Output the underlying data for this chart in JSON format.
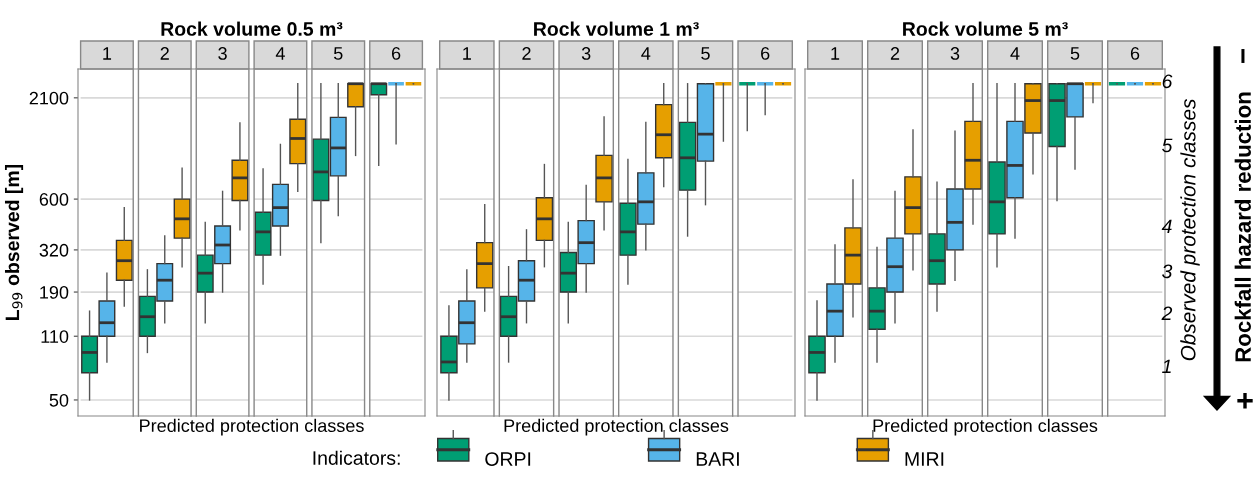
{
  "chart_data": [
    {
      "type": "box",
      "title": "Rock volume 0.5 m³",
      "xlabel": "Predicted protection classes",
      "ylabel": "L$_{99}$ observed [m]",
      "categories": [
        "1",
        "2",
        "3",
        "4",
        "5",
        "6"
      ],
      "log": true,
      "ylim": [
        41,
        3000
      ],
      "yticks": [
        50,
        110,
        190,
        320,
        600,
        2100
      ],
      "grid": "y",
      "series": [
        {
          "color": "#009e73",
          "boxes": [
            {
              "low": 50,
              "q1": 70,
              "median": 90,
              "q3": 110,
              "high": 150
            },
            {
              "low": 90,
              "q1": 110,
              "median": 140,
              "q3": 180,
              "high": 250
            },
            {
              "low": 130,
              "q1": 190,
              "median": 240,
              "q3": 300,
              "high": 450
            },
            {
              "low": 210,
              "q1": 300,
              "median": 400,
              "q3": 510,
              "high": 870
            },
            {
              "low": 350,
              "q1": 590,
              "median": 840,
              "q3": 1260,
              "high": 2500
            },
            {
              "low": 910,
              "q1": 2180,
              "median": 2500,
              "q3": 2500,
              "high": 2500
            }
          ]
        },
        {
          "color": "#56b4e9",
          "boxes": [
            {
              "low": 80,
              "q1": 110,
              "median": 130,
              "q3": 170,
              "high": 240
            },
            {
              "low": 130,
              "q1": 170,
              "median": 220,
              "q3": 270,
              "high": 380
            },
            {
              "low": 190,
              "q1": 270,
              "median": 340,
              "q3": 430,
              "high": 660
            },
            {
              "low": 300,
              "q1": 430,
              "median": 540,
              "q3": 720,
              "high": 1180
            },
            {
              "low": 490,
              "q1": 800,
              "median": 1130,
              "q3": 1650,
              "high": 2500
            },
            {
              "low": 1190,
              "q1": 2500,
              "median": 2500,
              "q3": 2500,
              "high": 2500
            }
          ]
        },
        {
          "color": "#e69f00",
          "boxes": [
            {
              "low": 160,
              "q1": 220,
              "median": 280,
              "q3": 360,
              "high": 540
            },
            {
              "low": 260,
              "q1": 370,
              "median": 470,
              "q3": 600,
              "high": 880
            },
            {
              "low": 410,
              "q1": 590,
              "median": 780,
              "q3": 970,
              "high": 1540
            },
            {
              "low": 660,
              "q1": 930,
              "median": 1270,
              "q3": 1610,
              "high": 2500
            },
            {
              "low": 1030,
              "q1": 1880,
              "median": 2500,
              "q3": 2500,
              "high": 2500
            },
            {
              "low": 2500,
              "q1": 2500,
              "median": 2500,
              "q3": 2500,
              "high": 2500
            }
          ]
        }
      ]
    },
    {
      "type": "box",
      "title": "Rock volume 1 m³",
      "xlabel": "Predicted protection classes",
      "categories": [
        "1",
        "2",
        "3",
        "4",
        "5",
        "6"
      ],
      "log": true,
      "ylim": [
        41,
        3000
      ],
      "yticks": [
        50,
        110,
        190,
        320,
        600,
        2100
      ],
      "grid": "y",
      "tick_labels": "x",
      "legend": "bottom",
      "legend_title": "Indicators:",
      "series": [
        {
          "name": "ORPI",
          "color": "#009e73",
          "boxes": [
            {
              "low": 50,
              "q1": 70,
              "median": 80,
              "q3": 110,
              "high": 160
            },
            {
              "low": 80,
              "q1": 110,
              "median": 140,
              "q3": 180,
              "high": 260
            },
            {
              "low": 130,
              "q1": 190,
              "median": 240,
              "q3": 310,
              "high": 450
            },
            {
              "low": 210,
              "q1": 300,
              "median": 400,
              "q3": 570,
              "high": 980
            },
            {
              "low": 380,
              "q1": 670,
              "median": 1000,
              "q3": 1550,
              "high": 2500
            },
            {
              "low": 1400,
              "q1": 2500,
              "median": 2500,
              "q3": 2500,
              "high": 2500
            }
          ]
        },
        {
          "name": "BARI",
          "color": "#56b4e9",
          "boxes": [
            {
              "low": 80,
              "q1": 100,
              "median": 130,
              "q3": 170,
              "high": 250
            },
            {
              "low": 130,
              "q1": 170,
              "median": 220,
              "q3": 280,
              "high": 410
            },
            {
              "low": 190,
              "q1": 270,
              "median": 350,
              "q3": 460,
              "high": 710
            },
            {
              "low": 320,
              "q1": 440,
              "median": 580,
              "q3": 830,
              "high": 1550
            },
            {
              "low": 560,
              "q1": 960,
              "median": 1340,
              "q3": 2500,
              "high": 2500
            },
            {
              "low": 1710,
              "q1": 2500,
              "median": 2500,
              "q3": 2500,
              "high": 2500
            }
          ]
        },
        {
          "name": "MIRI",
          "color": "#e69f00",
          "boxes": [
            {
              "low": 150,
              "q1": 200,
              "median": 270,
              "q3": 350,
              "high": 560
            },
            {
              "low": 260,
              "q1": 360,
              "median": 470,
              "q3": 610,
              "high": 920
            },
            {
              "low": 410,
              "q1": 580,
              "median": 780,
              "q3": 1030,
              "high": 1660
            },
            {
              "low": 700,
              "q1": 1000,
              "median": 1330,
              "q3": 1930,
              "high": 2500
            },
            {
              "low": 1230,
              "q1": 2500,
              "median": 2500,
              "q3": 2500,
              "high": 2500
            },
            {
              "low": 2500,
              "q1": 2500,
              "median": 2500,
              "q3": 2500,
              "high": 2500
            }
          ]
        }
      ]
    },
    {
      "type": "box",
      "title": "Rock volume 5 m³",
      "xlabel": "Predicted protection classes",
      "categories": [
        "1",
        "2",
        "3",
        "4",
        "5",
        "6"
      ],
      "log": true,
      "ylim": [
        41,
        3000
      ],
      "yticks": [
        50,
        110,
        190,
        320,
        600,
        2100
      ],
      "grid": "y",
      "tick_labels": "x",
      "annotations": [
        "Rockfall hazard reduction",
        "−",
        "+",
        "Observed protection classes",
        "1",
        "2",
        "3",
        "4",
        "5",
        "6"
      ],
      "series": [
        {
          "color": "#009e73",
          "boxes": [
            {
              "low": 50,
              "q1": 70,
              "median": 90,
              "q3": 110,
              "high": 170
            },
            {
              "low": 80,
              "q1": 120,
              "median": 150,
              "q3": 200,
              "high": 330
            },
            {
              "low": 150,
              "q1": 210,
              "median": 280,
              "q3": 390,
              "high": 740
            },
            {
              "low": 260,
              "q1": 390,
              "median": 580,
              "q3": 950,
              "high": 2500
            },
            {
              "low": 590,
              "q1": 1150,
              "median": 2030,
              "q3": 2500,
              "high": 2500
            },
            {
              "low": 2500,
              "q1": 2500,
              "median": 2500,
              "q3": 2500,
              "high": 2500
            }
          ]
        },
        {
          "color": "#56b4e9",
          "boxes": [
            {
              "low": 80,
              "q1": 110,
              "median": 150,
              "q3": 210,
              "high": 340
            },
            {
              "low": 130,
              "q1": 190,
              "median": 260,
              "q3": 370,
              "high": 660
            },
            {
              "low": 220,
              "q1": 320,
              "median": 450,
              "q3": 680,
              "high": 1390
            },
            {
              "low": 370,
              "q1": 610,
              "median": 910,
              "q3": 1570,
              "high": 2500
            },
            {
              "low": 870,
              "q1": 1660,
              "median": 2500,
              "q3": 2500,
              "high": 2500
            },
            {
              "low": 2500,
              "q1": 2500,
              "median": 2500,
              "q3": 2500,
              "high": 2500
            }
          ]
        },
        {
          "color": "#e69f00",
          "boxes": [
            {
              "low": 140,
              "q1": 210,
              "median": 300,
              "q3": 420,
              "high": 760
            },
            {
              "low": 250,
              "q1": 390,
              "median": 540,
              "q3": 790,
              "high": 1410
            },
            {
              "low": 440,
              "q1": 680,
              "median": 970,
              "q3": 1570,
              "high": 2500
            },
            {
              "low": 820,
              "q1": 1360,
              "median": 2030,
              "q3": 2500,
              "high": 2500
            },
            {
              "low": 1980,
              "q1": 2500,
              "median": 2500,
              "q3": 2500,
              "high": 2500
            },
            {
              "low": 2500,
              "q1": 2500,
              "median": 2500,
              "q3": 2500,
              "high": 2500
            }
          ]
        }
      ]
    }
  ]
}
